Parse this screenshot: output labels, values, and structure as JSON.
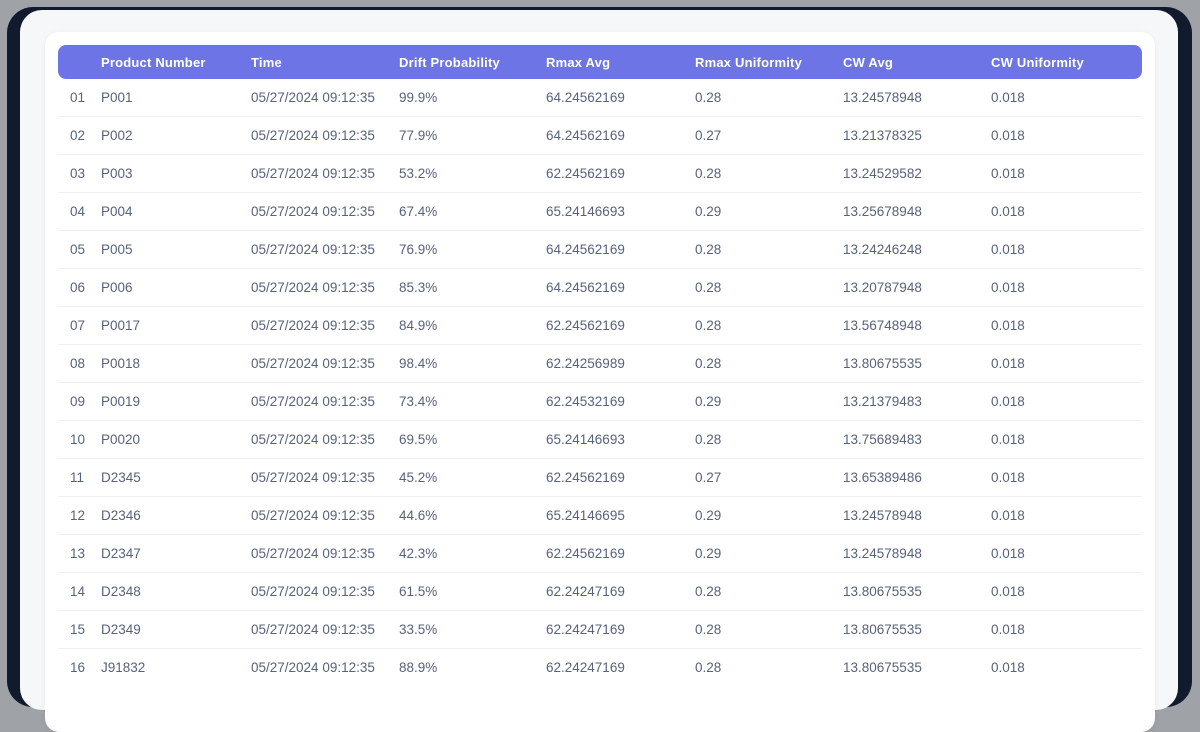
{
  "colors": {
    "outer_bg": "#9FA2A7",
    "backdrop": "#121A2D",
    "window_bg": "#F6F7F9",
    "card_bg": "#FFFFFF",
    "accent": "#6C74E6",
    "header_text": "#FFFFFF",
    "body_text": "#57627B",
    "separator": "#EEF0F4"
  },
  "table": {
    "columns": [
      "Product Number",
      "Time",
      "Drift Probability",
      "Rmax Avg",
      "Rmax Uniformity",
      "CW Avg",
      "CW Uniformity"
    ],
    "rows": [
      {
        "index": "01",
        "product": "P001",
        "time": "05/27/2024 09:12:35",
        "drift": "99.9%",
        "rmax_avg": "64.24562169",
        "rmax_unif": "0.28",
        "cw_avg": "13.24578948",
        "cw_unif": "0.018"
      },
      {
        "index": "02",
        "product": "P002",
        "time": "05/27/2024 09:12:35",
        "drift": "77.9%",
        "rmax_avg": "64.24562169",
        "rmax_unif": "0.27",
        "cw_avg": "13.21378325",
        "cw_unif": "0.018"
      },
      {
        "index": "03",
        "product": "P003",
        "time": "05/27/2024 09:12:35",
        "drift": "53.2%",
        "rmax_avg": "62.24562169",
        "rmax_unif": "0.28",
        "cw_avg": "13.24529582",
        "cw_unif": "0.018"
      },
      {
        "index": "04",
        "product": "P004",
        "time": "05/27/2024 09:12:35",
        "drift": "67.4%",
        "rmax_avg": "65.24146693",
        "rmax_unif": "0.29",
        "cw_avg": "13.25678948",
        "cw_unif": "0.018"
      },
      {
        "index": "05",
        "product": "P005",
        "time": "05/27/2024 09:12:35",
        "drift": "76.9%",
        "rmax_avg": "64.24562169",
        "rmax_unif": "0.28",
        "cw_avg": "13.24246248",
        "cw_unif": "0.018"
      },
      {
        "index": "06",
        "product": "P006",
        "time": "05/27/2024 09:12:35",
        "drift": "85.3%",
        "rmax_avg": "64.24562169",
        "rmax_unif": "0.28",
        "cw_avg": "13.20787948",
        "cw_unif": "0.018"
      },
      {
        "index": "07",
        "product": "P0017",
        "time": "05/27/2024 09:12:35",
        "drift": "84.9%",
        "rmax_avg": "62.24562169",
        "rmax_unif": "0.28",
        "cw_avg": "13.56748948",
        "cw_unif": "0.018"
      },
      {
        "index": "08",
        "product": "P0018",
        "time": "05/27/2024 09:12:35",
        "drift": "98.4%",
        "rmax_avg": "62.24256989",
        "rmax_unif": "0.28",
        "cw_avg": "13.80675535",
        "cw_unif": "0.018"
      },
      {
        "index": "09",
        "product": "P0019",
        "time": "05/27/2024 09:12:35",
        "drift": "73.4%",
        "rmax_avg": "62.24532169",
        "rmax_unif": "0.29",
        "cw_avg": "13.21379483",
        "cw_unif": "0.018"
      },
      {
        "index": "10",
        "product": "P0020",
        "time": "05/27/2024 09:12:35",
        "drift": "69.5%",
        "rmax_avg": "65.24146693",
        "rmax_unif": "0.28",
        "cw_avg": "13.75689483",
        "cw_unif": "0.018"
      },
      {
        "index": "11",
        "product": "D2345",
        "time": "05/27/2024 09:12:35",
        "drift": "45.2%",
        "rmax_avg": "62.24562169",
        "rmax_unif": "0.27",
        "cw_avg": "13.65389486",
        "cw_unif": "0.018"
      },
      {
        "index": "12",
        "product": "D2346",
        "time": "05/27/2024 09:12:35",
        "drift": "44.6%",
        "rmax_avg": "65.24146695",
        "rmax_unif": "0.29",
        "cw_avg": "13.24578948",
        "cw_unif": "0.018"
      },
      {
        "index": "13",
        "product": "D2347",
        "time": "05/27/2024 09:12:35",
        "drift": "42.3%",
        "rmax_avg": "62.24562169",
        "rmax_unif": "0.29",
        "cw_avg": "13.24578948",
        "cw_unif": "0.018"
      },
      {
        "index": "14",
        "product": "D2348",
        "time": "05/27/2024 09:12:35",
        "drift": "61.5%",
        "rmax_avg": "62.24247169",
        "rmax_unif": "0.28",
        "cw_avg": "13.80675535",
        "cw_unif": "0.018"
      },
      {
        "index": "15",
        "product": "D2349",
        "time": "05/27/2024 09:12:35",
        "drift": "33.5%",
        "rmax_avg": "62.24247169",
        "rmax_unif": "0.28",
        "cw_avg": "13.80675535",
        "cw_unif": "0.018"
      },
      {
        "index": "16",
        "product": "J91832",
        "time": "05/27/2024 09:12:35",
        "drift": "88.9%",
        "rmax_avg": "62.24247169",
        "rmax_unif": "0.28",
        "cw_avg": "13.80675535",
        "cw_unif": "0.018"
      }
    ]
  }
}
